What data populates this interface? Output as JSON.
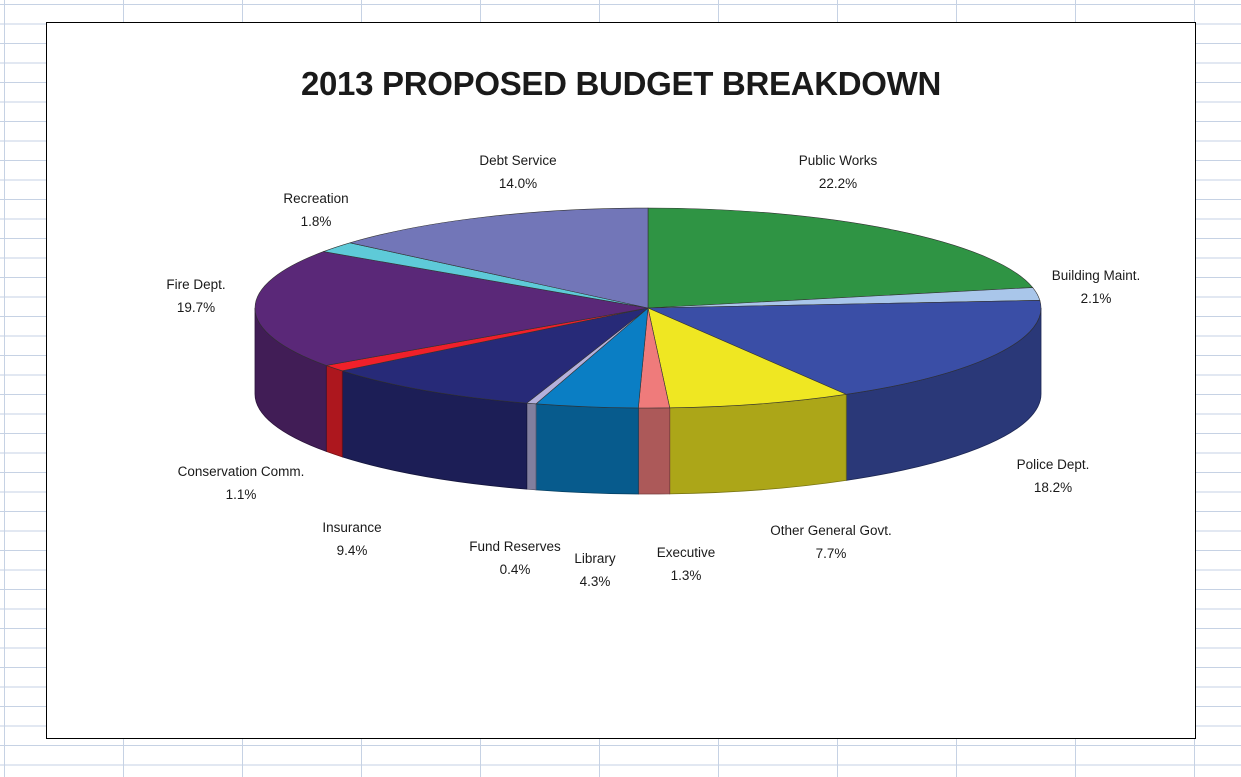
{
  "chart_data": {
    "type": "pie",
    "title": "2013 PROPOSED BUDGET BREAKDOWN",
    "style": "3d",
    "slices": [
      {
        "label": "Public Works",
        "value": 22.2,
        "value_label": "22.2%",
        "color": "#2f9444"
      },
      {
        "label": "Building Maint.",
        "value": 2.1,
        "value_label": "2.1%",
        "color": "#a9c6ea"
      },
      {
        "label": "Police Dept.",
        "value": 18.2,
        "value_label": "18.2%",
        "color": "#3a4ea6"
      },
      {
        "label": "Other General Govt.",
        "value": 7.7,
        "value_label": "7.7%",
        "color": "#efe722"
      },
      {
        "label": "Executive",
        "value": 1.3,
        "value_label": "1.3%",
        "color": "#ef7b7b"
      },
      {
        "label": "Library",
        "value": 4.3,
        "value_label": "4.3%",
        "color": "#0a7ec4"
      },
      {
        "label": "Fund Reserves",
        "value": 0.4,
        "value_label": "0.4%",
        "color": "#b4b0dc"
      },
      {
        "label": "Insurance",
        "value": 9.4,
        "value_label": "9.4%",
        "color": "#272a78"
      },
      {
        "label": "Conservation Comm.",
        "value": 1.1,
        "value_label": "1.1%",
        "color": "#f0202a"
      },
      {
        "label": "Fire Dept.",
        "value": 19.7,
        "value_label": "19.7%",
        "color": "#5a2878"
      },
      {
        "label": "Recreation",
        "value": 1.8,
        "value_label": "1.8%",
        "color": "#5ecad8"
      },
      {
        "label": "Debt Service",
        "value": 14.0,
        "value_label": "14.0%",
        "color": "#7276b8"
      }
    ]
  }
}
